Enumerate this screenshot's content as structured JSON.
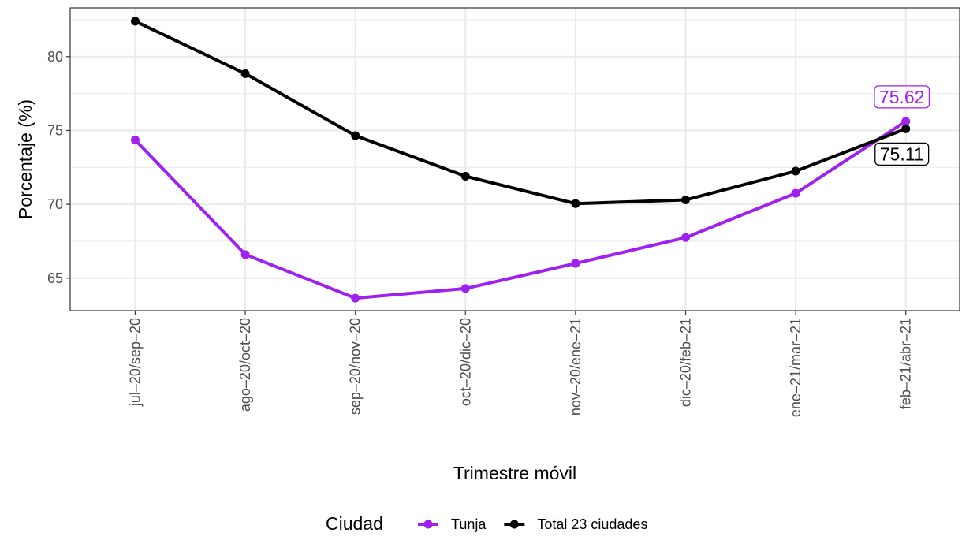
{
  "chart_data": {
    "type": "line",
    "xlabel": "Trimestre móvil",
    "ylabel": "Porcentaje (%)",
    "categories": [
      "jul‒20/sep‒20",
      "ago‒20/oct‒20",
      "sep‒20/nov‒20",
      "oct‒20/dic‒20",
      "nov‒20/ene‒21",
      "dic‒20/feb‒21",
      "ene‒21/mar‒21",
      "feb‒21/abr‒21"
    ],
    "ylim": [
      62.8,
      83.3
    ],
    "yticks": [
      65,
      70,
      75,
      80
    ],
    "grid": true,
    "legend_position": "bottom",
    "legend_title": "Ciudad",
    "series": [
      {
        "name": "Tunja",
        "color": "#a020f0",
        "values": [
          74.35,
          66.6,
          63.65,
          64.3,
          66.0,
          67.75,
          70.75,
          75.62
        ]
      },
      {
        "name": "Total 23 ciudades",
        "color": "#000000",
        "values": [
          82.4,
          78.85,
          74.65,
          71.9,
          70.05,
          70.3,
          72.25,
          75.11
        ]
      }
    ],
    "end_labels": [
      {
        "series": "Tunja",
        "text": "75.62"
      },
      {
        "series": "Total 23 ciudades",
        "text": "75.11"
      }
    ]
  }
}
